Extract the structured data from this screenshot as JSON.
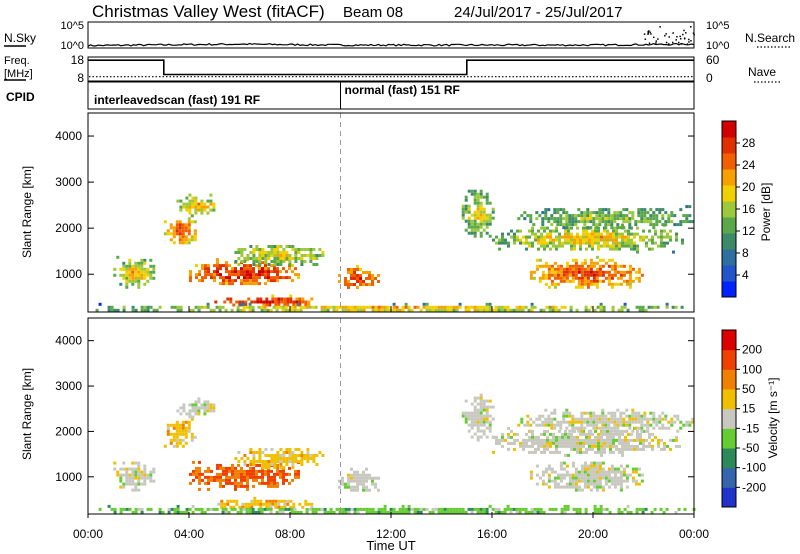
{
  "header": {
    "station": "Christmas Valley West (fitACF)",
    "beam": "Beam 08",
    "dates": "24/Jul/2017 - 25/Jul/2017"
  },
  "chart_data": [
    {
      "type": "line",
      "name": "nsky-nsearch-panel",
      "left_label": "N.Sky",
      "right_label": "N.Search",
      "left_ticks": [
        "10^5",
        "10^0"
      ],
      "right_ticks": [
        "10^5",
        "10^0"
      ],
      "x": [
        0,
        2,
        4,
        6,
        8,
        10,
        12,
        14,
        16,
        18,
        20,
        22,
        24
      ],
      "nsky_log10": [
        0.3,
        0.4,
        0.5,
        0.6,
        0.5,
        0.4,
        0.4,
        0.4,
        0.4,
        0.4,
        0.4,
        0.5,
        0.6
      ]
    },
    {
      "type": "line",
      "name": "freq-nave-panel",
      "left_label_1": "Freq.",
      "left_label_2": "[MHz]",
      "right_label": "Nave",
      "left_ticks": [
        "18",
        "8"
      ],
      "right_ticks": [
        "60",
        "0"
      ],
      "freq_steps": [
        [
          0,
          3,
          17
        ],
        [
          3,
          15,
          10.5
        ],
        [
          15,
          24,
          17
        ]
      ],
      "nave": 9
    },
    {
      "type": "table",
      "name": "cpid-panel",
      "label": "CPID",
      "segments": [
        {
          "start": 0,
          "end": 10,
          "text": "interleavedscan (fast) 191 RF"
        },
        {
          "start": 10,
          "end": 24,
          "text": "normal (fast) 151 RF"
        }
      ]
    },
    {
      "type": "heatmap",
      "name": "power-panel",
      "ylabel": "Slant Range [km]",
      "ylim": [
        180,
        4500
      ],
      "yticks": [
        "1000",
        "2000",
        "3000",
        "4000"
      ],
      "colorbar_label": "Power [dB]",
      "colorbar_ticks": [
        "4",
        "8",
        "12",
        "16",
        "20",
        "24",
        "28"
      ],
      "colorbar_colors": [
        "#0022ff",
        "#2255cc",
        "#2f6fa0",
        "#3c8a6a",
        "#5aa84a",
        "#9cc83a",
        "#f0d000",
        "#f8a000",
        "#f06000",
        "#e03000",
        "#d00000"
      ],
      "vmin": 0,
      "vmax": 32
    },
    {
      "type": "heatmap",
      "name": "velocity-panel",
      "ylabel": "Slant Range [km]",
      "ylim": [
        180,
        4500
      ],
      "yticks": [
        "1000",
        "2000",
        "3000",
        "4000"
      ],
      "colorbar_label": "Velocity [m s⁻¹]",
      "colorbar_ticks": [
        "200",
        "100",
        "50",
        "15",
        "-15",
        "-50",
        "-100",
        "-200"
      ],
      "colorbar_colors": [
        "#2233cc",
        "#3366aa",
        "#2c8a5a",
        "#66cc33",
        "#c8c8c0",
        "#f0c000",
        "#f08000",
        "#f04000",
        "#dd0000"
      ]
    }
  ],
  "xaxis": {
    "label": "Time UT",
    "ticks": [
      "00:00",
      "04:00",
      "08:00",
      "12:00",
      "16:00",
      "20:00",
      "00:00"
    ],
    "range": [
      0,
      24
    ]
  }
}
